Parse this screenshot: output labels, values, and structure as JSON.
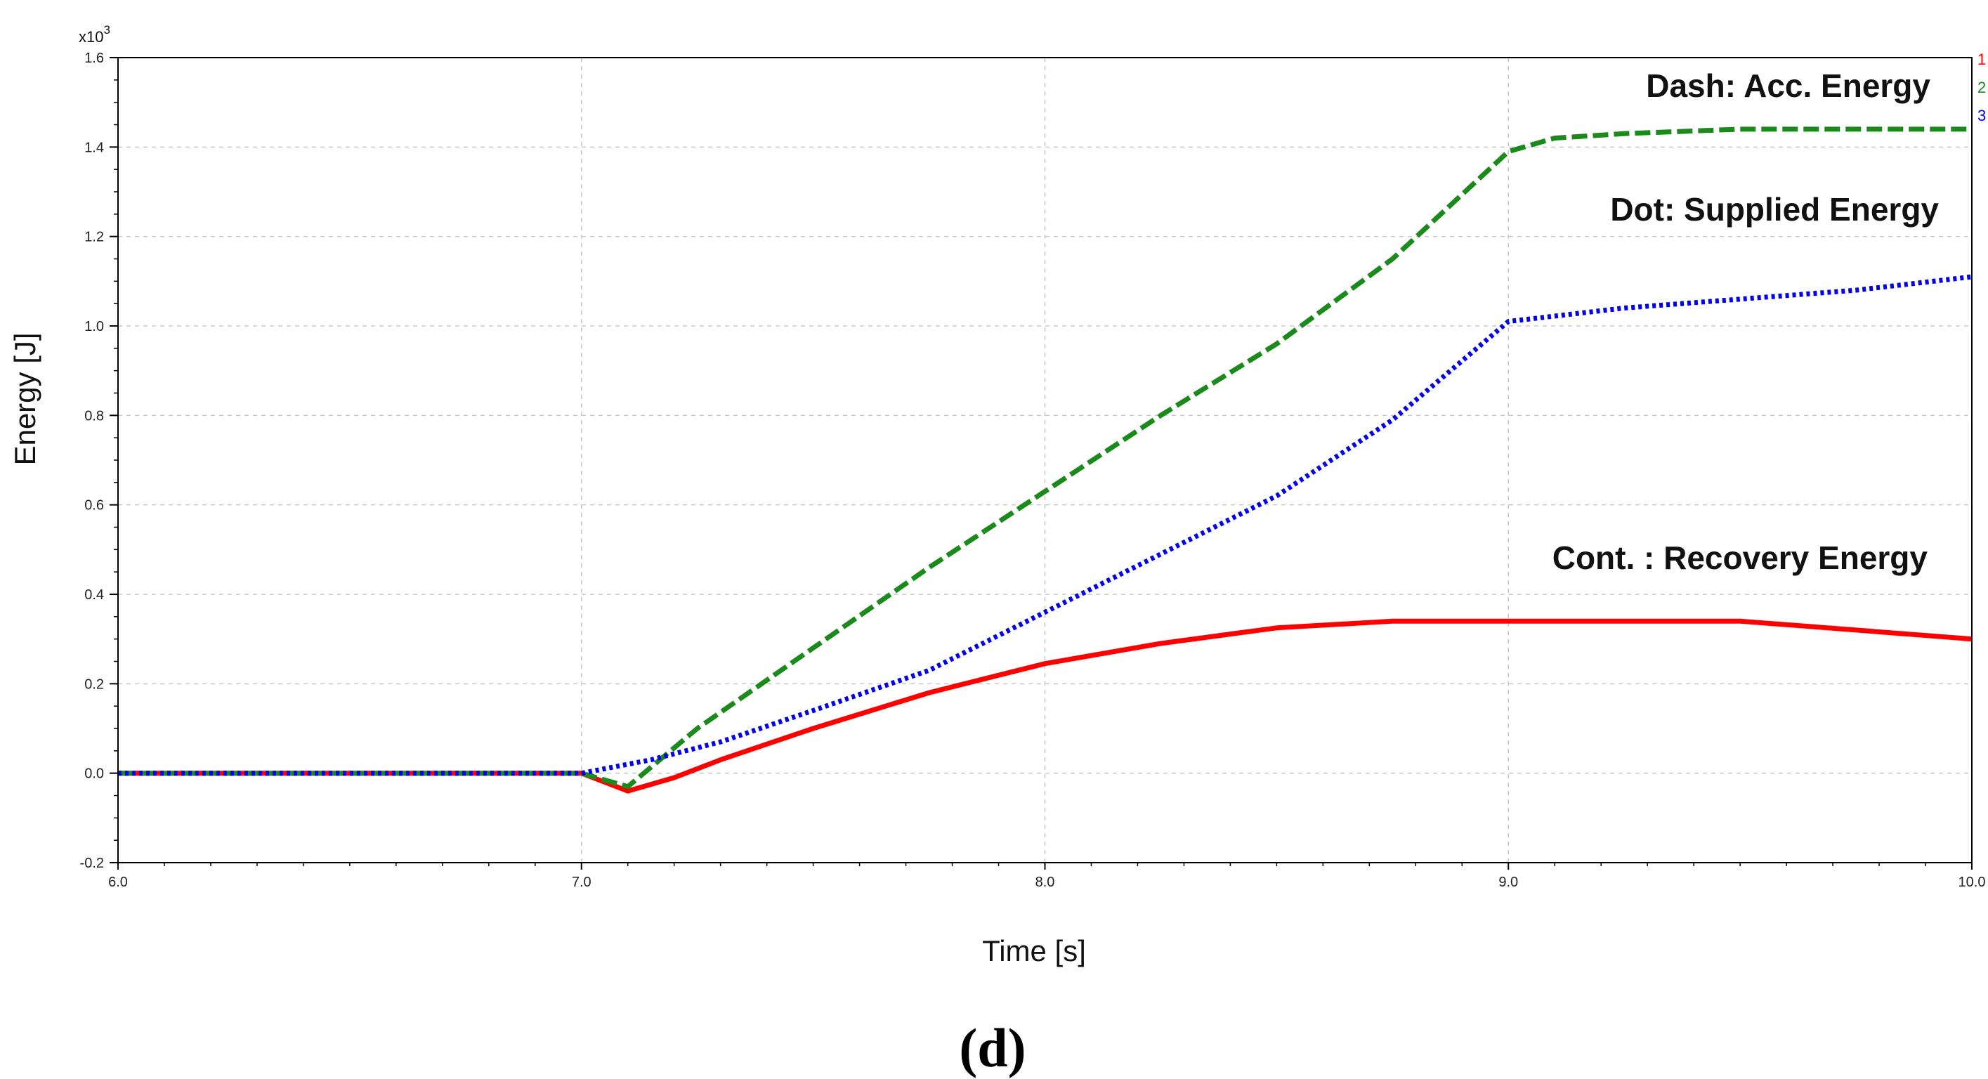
{
  "chart_data": {
    "type": "line",
    "xlabel": "Time [s]",
    "ylabel": "Energy [J]",
    "y_multiplier_label": "x10",
    "y_multiplier_exp": "3",
    "xlim": [
      6.0,
      10.0
    ],
    "ylim": [
      -0.2,
      1.6
    ],
    "x_ticks": [
      "6.0",
      "7.0",
      "8.0",
      "9.0",
      "10.0"
    ],
    "y_ticks": [
      "-0.2",
      "0.0",
      "0.2",
      "0.4",
      "0.6",
      "0.8",
      "1.0",
      "1.2",
      "1.4",
      "1.6"
    ],
    "grid": true,
    "annotations": [
      "Dash: Acc. Energy",
      "Dot: Supplied Energy",
      "Cont. : Recovery Energy"
    ],
    "legend_numbers": [
      "1",
      "2",
      "3"
    ],
    "caption": "(d)",
    "series": [
      {
        "name": "1",
        "color": "#ff0000",
        "style": "solid",
        "x": [
          6.0,
          7.0,
          7.05,
          7.1,
          7.2,
          7.3,
          7.5,
          7.75,
          8.0,
          8.25,
          8.5,
          8.75,
          9.0,
          9.25,
          9.5,
          9.75,
          10.0
        ],
        "y": [
          0.0,
          0.0,
          -0.02,
          -0.04,
          -0.01,
          0.03,
          0.1,
          0.18,
          0.245,
          0.29,
          0.325,
          0.34,
          0.34,
          0.34,
          0.34,
          0.32,
          0.3
        ]
      },
      {
        "name": "2",
        "color": "#1a8a1a",
        "style": "dashed",
        "x": [
          6.0,
          7.0,
          7.1,
          7.25,
          7.5,
          7.75,
          8.0,
          8.25,
          8.5,
          8.75,
          9.0,
          9.1,
          9.25,
          9.5,
          9.75,
          10.0
        ],
        "y": [
          0.0,
          0.0,
          -0.03,
          0.1,
          0.28,
          0.46,
          0.63,
          0.8,
          0.96,
          1.15,
          1.39,
          1.42,
          1.43,
          1.44,
          1.44,
          1.44
        ]
      },
      {
        "name": "3",
        "color": "#0000ee",
        "style": "dotted",
        "x": [
          6.0,
          7.0,
          7.15,
          7.3,
          7.5,
          7.75,
          8.0,
          8.25,
          8.5,
          8.75,
          9.0,
          9.25,
          9.5,
          9.75,
          10.0
        ],
        "y": [
          0.0,
          0.0,
          0.03,
          0.07,
          0.14,
          0.23,
          0.36,
          0.49,
          0.62,
          0.79,
          1.01,
          1.04,
          1.06,
          1.08,
          1.11
        ]
      }
    ]
  }
}
